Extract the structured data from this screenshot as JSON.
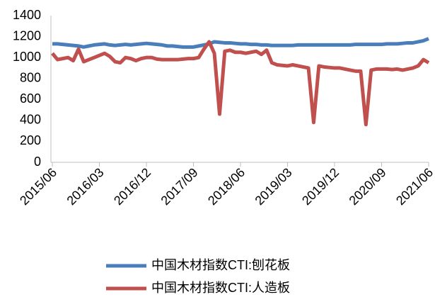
{
  "chart_data": {
    "type": "line",
    "x": [
      "2015/06",
      "2015/07",
      "2015/08",
      "2015/09",
      "2015/10",
      "2015/11",
      "2015/12",
      "2016/01",
      "2016/02",
      "2016/03",
      "2016/04",
      "2016/05",
      "2016/06",
      "2016/07",
      "2016/08",
      "2016/09",
      "2016/10",
      "2016/11",
      "2016/12",
      "2017/01",
      "2017/02",
      "2017/03",
      "2017/04",
      "2017/05",
      "2017/06",
      "2017/07",
      "2017/08",
      "2017/09",
      "2017/10",
      "2017/11",
      "2017/12",
      "2018/01",
      "2018/02",
      "2018/03",
      "2018/04",
      "2018/05",
      "2018/06",
      "2018/07",
      "2018/08",
      "2018/09",
      "2018/10",
      "2018/11",
      "2018/12",
      "2019/01",
      "2019/02",
      "2019/03",
      "2019/04",
      "2019/05",
      "2019/06",
      "2019/07",
      "2019/08",
      "2019/09",
      "2019/10",
      "2019/11",
      "2019/12",
      "2020/01",
      "2020/02",
      "2020/03",
      "2020/04",
      "2020/05",
      "2020/06",
      "2020/07",
      "2020/08",
      "2020/09",
      "2020/10",
      "2020/11",
      "2020/12",
      "2021/01",
      "2021/02",
      "2021/03",
      "2021/04",
      "2021/05",
      "2021/06"
    ],
    "xticks": [
      "2015/06",
      "2016/03",
      "2016/12",
      "2017/09",
      "2018/06",
      "2019/03",
      "2019/12",
      "2020/09",
      "2021/06"
    ],
    "ylim": [
      0,
      1400
    ],
    "yticks": [
      0,
      200,
      400,
      600,
      800,
      1000,
      1200,
      1400
    ],
    "grid": false,
    "legend": "bottom",
    "series": [
      {
        "name": "中国木材指数CTI:刨花板",
        "color": "#4a7ebb",
        "values": [
          1130,
          1130,
          1125,
          1120,
          1115,
          1110,
          1100,
          1110,
          1120,
          1125,
          1130,
          1120,
          1115,
          1120,
          1125,
          1120,
          1125,
          1130,
          1135,
          1130,
          1125,
          1120,
          1110,
          1110,
          1105,
          1100,
          1100,
          1100,
          1110,
          1120,
          1130,
          1150,
          1145,
          1140,
          1140,
          1135,
          1130,
          1130,
          1125,
          1125,
          1120,
          1120,
          1115,
          1115,
          1115,
          1115,
          1115,
          1120,
          1120,
          1120,
          1120,
          1120,
          1120,
          1120,
          1120,
          1120,
          1120,
          1120,
          1125,
          1125,
          1125,
          1125,
          1125,
          1125,
          1130,
          1130,
          1130,
          1135,
          1140,
          1140,
          1150,
          1160,
          1180
        ]
      },
      {
        "name": "中国木材指数CTI:人造板",
        "color": "#c0504d",
        "values": [
          1040,
          980,
          990,
          1000,
          970,
          1080,
          960,
          980,
          1000,
          1020,
          1040,
          1010,
          960,
          950,
          1000,
          990,
          970,
          990,
          1000,
          1000,
          985,
          980,
          980,
          980,
          980,
          985,
          990,
          990,
          1000,
          1080,
          1150,
          1040,
          460,
          1060,
          1070,
          1050,
          1050,
          1040,
          1050,
          1060,
          1030,
          1070,
          950,
          930,
          925,
          920,
          930,
          920,
          910,
          900,
          380,
          920,
          910,
          905,
          900,
          900,
          890,
          880,
          870,
          870,
          360,
          880,
          890,
          890,
          890,
          885,
          890,
          880,
          890,
          900,
          920,
          980,
          950
        ]
      }
    ]
  }
}
